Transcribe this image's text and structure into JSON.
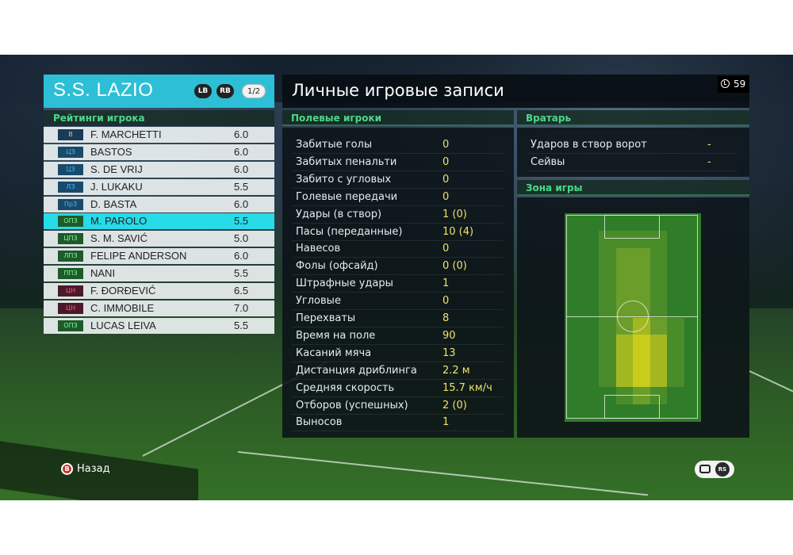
{
  "team": {
    "name": "S.S. LAZIO",
    "lb_label": "LB",
    "rb_label": "RB",
    "page": "1/2"
  },
  "rating_title": "Рейтинги игрока",
  "players": [
    {
      "pos": "В",
      "name": "F. MARCHETTI",
      "rating": "6.0",
      "group": "gk"
    },
    {
      "pos": "ЦЗ",
      "name": "BASTOS",
      "rating": "6.0",
      "group": "def"
    },
    {
      "pos": "ЦЗ",
      "name": "S. DE VRIJ",
      "rating": "6.0",
      "group": "def"
    },
    {
      "pos": "ЛЗ",
      "name": "J. LUKAKU",
      "rating": "5.5",
      "group": "def"
    },
    {
      "pos": "ПрЗ",
      "name": "D. BASTA",
      "rating": "6.0",
      "group": "def"
    },
    {
      "pos": "ОПЗ",
      "name": "M. PAROLO",
      "rating": "5.5",
      "group": "mid",
      "selected": true
    },
    {
      "pos": "ЦПЗ",
      "name": "S. M. SAVIĆ",
      "rating": "5.0",
      "group": "mid"
    },
    {
      "pos": "ЛПЗ",
      "name": "FELIPE ANDERSON",
      "rating": "6.0",
      "group": "mid"
    },
    {
      "pos": "ППЗ",
      "name": "NANI",
      "rating": "5.5",
      "group": "mid"
    },
    {
      "pos": "ЦН",
      "name": "F. ĐORĐEVIĆ",
      "rating": "6.5",
      "group": "fwd"
    },
    {
      "pos": "ЦН",
      "name": "C. IMMOBILE",
      "rating": "7.0",
      "group": "fwd"
    },
    {
      "pos": "ОПЗ",
      "name": "LUCAS LEIVA",
      "rating": "5.5",
      "group": "mid"
    }
  ],
  "main_title": "Личные игровые записи",
  "timer": "59",
  "field_players": {
    "title": "Полевые игроки",
    "stats": [
      {
        "label": "Забитые голы",
        "value": "0"
      },
      {
        "label": "Забитых пенальти",
        "value": "0"
      },
      {
        "label": "Забито с угловых",
        "value": "0"
      },
      {
        "label": "Голевые передачи",
        "value": "0"
      },
      {
        "label": "Удары (в створ)",
        "value": "1 (0)"
      },
      {
        "label": "Пасы (переданные)",
        "value": "10 (4)"
      },
      {
        "label": "Навесов",
        "value": "0"
      },
      {
        "label": "Фолы (офсайд)",
        "value": "0 (0)"
      },
      {
        "label": "Штрафные удары",
        "value": "1"
      },
      {
        "label": "Угловые",
        "value": "0"
      },
      {
        "label": "Перехваты",
        "value": "8"
      },
      {
        "label": "Время на поле",
        "value": "90"
      },
      {
        "label": "Касаний мяча",
        "value": "13"
      },
      {
        "label": "Дистанция дриблинга",
        "value": "2.2 м"
      },
      {
        "label": "Средняя скорость",
        "value": "15.7 км/ч"
      },
      {
        "label": "Отборов (успешных)",
        "value": "2 (0)"
      },
      {
        "label": "Выносов",
        "value": "1"
      }
    ]
  },
  "goalkeeper": {
    "title": "Вратарь",
    "stats": [
      {
        "label": "Ударов в створ ворот",
        "value": "-"
      },
      {
        "label": "Сейвы",
        "value": "-"
      }
    ]
  },
  "zone": {
    "title": "Зона игры"
  },
  "footer": {
    "back_icon": "B",
    "back_label": "Назад",
    "rs_label": "RS"
  }
}
